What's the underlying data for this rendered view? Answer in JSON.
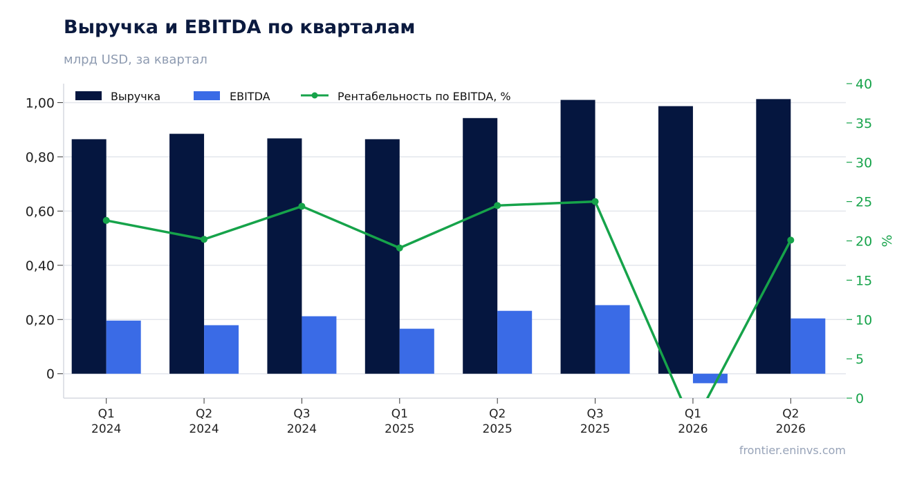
{
  "header": {
    "title": "Выручка и EBITDA по кварталам",
    "subtitle": "млрд USD, за квартал"
  },
  "footer": {
    "source": "frontier.eninvs.com"
  },
  "colors": {
    "revenue": "#05163f",
    "ebitda": "#3a6be6",
    "margin": "#16a34a",
    "grid": "#e3e6ec",
    "axis": "#d5d9e0"
  },
  "chart_data": {
    "type": "bar",
    "categories": [
      [
        "Q1",
        "2024"
      ],
      [
        "Q2",
        "2024"
      ],
      [
        "Q3",
        "2024"
      ],
      [
        "Q1",
        "2025"
      ],
      [
        "Q2",
        "2025"
      ],
      [
        "Q3",
        "2025"
      ],
      [
        "Q1",
        "2026"
      ],
      [
        "Q2",
        "2026"
      ]
    ],
    "series": [
      {
        "name": "Выручка",
        "type": "bar",
        "axis": "left",
        "values": [
          0.865,
          0.885,
          0.868,
          0.865,
          0.943,
          1.01,
          0.987,
          1.013
        ]
      },
      {
        "name": "EBITDA",
        "type": "bar",
        "axis": "left",
        "values": [
          0.196,
          0.179,
          0.212,
          0.166,
          0.232,
          0.253,
          -0.035,
          0.204
        ]
      },
      {
        "name": "Рентабельность по EBITDA, %",
        "type": "line",
        "axis": "right",
        "values": [
          22.6,
          20.2,
          24.4,
          19.1,
          24.5,
          25.0,
          -3.5,
          20.1
        ]
      }
    ],
    "y_left": {
      "ylim": [
        -0.09,
        1.07
      ],
      "ticks": [
        0,
        0.2,
        0.4,
        0.6,
        0.8,
        1.0
      ],
      "tick_labels": [
        "0",
        "0,20",
        "0,40",
        "0,60",
        "0,80",
        "1,00"
      ]
    },
    "y_right": {
      "ylabel": "%",
      "ylim": [
        0,
        40
      ],
      "ticks": [
        0,
        5,
        10,
        15,
        20,
        25,
        30,
        35,
        40
      ]
    },
    "grid": true,
    "legend": "top-left"
  }
}
